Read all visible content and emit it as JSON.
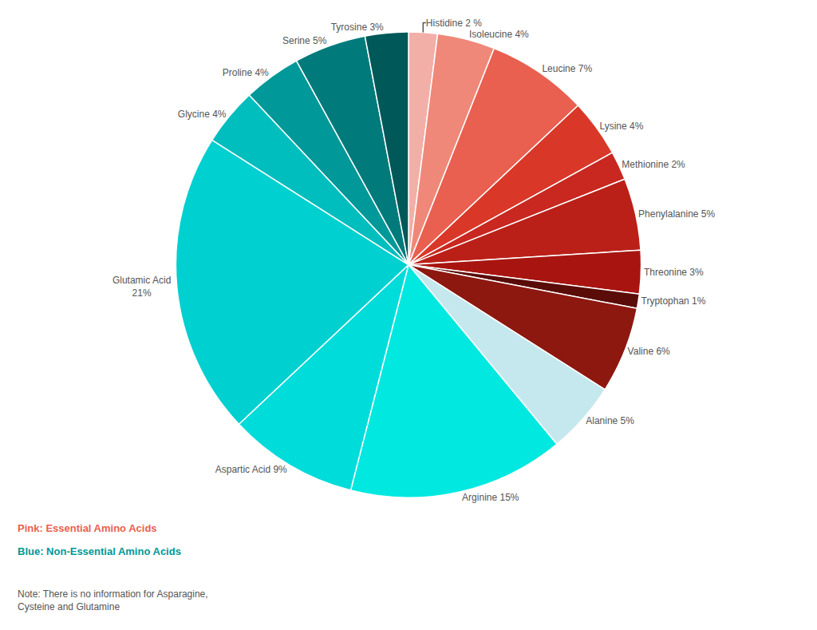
{
  "chart_data": {
    "type": "pie",
    "categories": [
      "Histidine 2 %",
      "Isoleucine 4%",
      "Leucine 7%",
      "Lysine 4%",
      "Methionine 2%",
      "Phenylalanine 5%",
      "Threonine 3%",
      "Tryptophan 1%",
      "Valine 6%",
      "Alanine 5%",
      "Arginine 15%",
      "Aspartic Acid 9%",
      "Glutamic Acid\n21%",
      "Glycine 4%",
      "Proline 4%",
      "Serine 5%",
      "Tyrosine 3%"
    ],
    "values": [
      2,
      4,
      7,
      4,
      2,
      5,
      3,
      1,
      6,
      5,
      15,
      9,
      21,
      4,
      4,
      5,
      3
    ],
    "colors": [
      "#F2AFA8",
      "#EF8878",
      "#E96050",
      "#D93828",
      "#C82820",
      "#BB2018",
      "#A81510",
      "#5A0C08",
      "#8C1810",
      "#C5E8EE",
      "#00E8E0",
      "#00DCDA",
      "#00D0D0",
      "#00BEBE",
      "#009898",
      "#007A7A",
      "#005858"
    ],
    "annotations": [
      {
        "text": "Pink: Essential Amino Acids",
        "color": "#E96050"
      },
      {
        "text": "Blue: Non-Essential Amino Acids",
        "color": "#009898"
      },
      {
        "text": "Note: There is no information for Asparagine,\nCysteine and Glutamine"
      }
    ]
  }
}
